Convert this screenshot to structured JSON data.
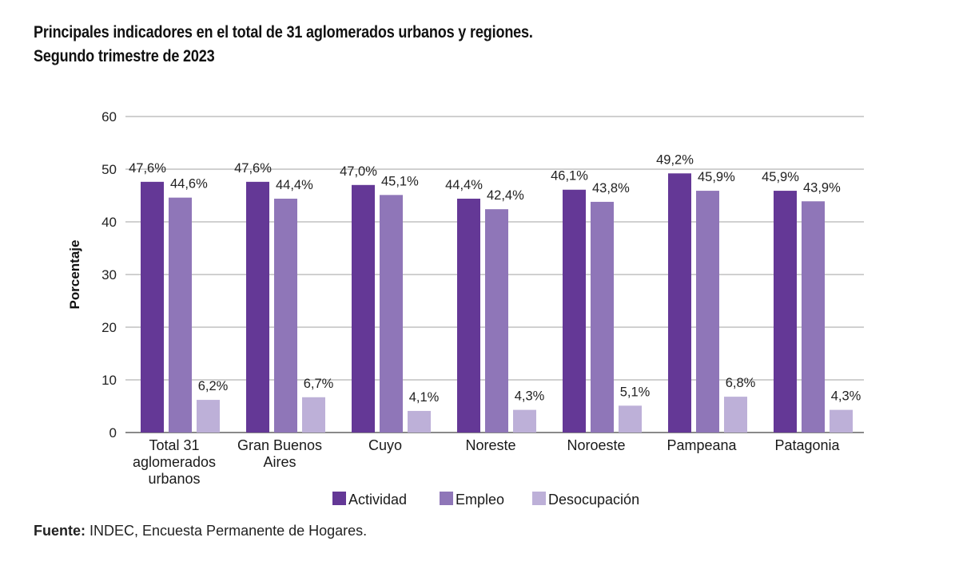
{
  "title_line1": "Principales indicadores en el total de 31 aglomerados urbanos y regiones.",
  "title_line2": "Segundo trimestre de 2023",
  "source_label": "Fuente:",
  "source_text": " INDEC, Encuesta Permanente de Hogares.",
  "chart_data": {
    "type": "bar",
    "title": "Principales indicadores en el total de 31 aglomerados urbanos y regiones. Segundo trimestre de 2023",
    "xlabel": "",
    "ylabel": "Porcentaje",
    "ylim": [
      0,
      60
    ],
    "yticks": [
      0,
      10,
      20,
      30,
      40,
      50,
      60
    ],
    "grid": true,
    "legend_position": "bottom",
    "categories": [
      [
        "Total 31",
        "aglomerados",
        "urbanos"
      ],
      [
        "Gran Buenos",
        "Aires"
      ],
      [
        "Cuyo"
      ],
      [
        "Noreste"
      ],
      [
        "Noroeste"
      ],
      [
        "Pampeana"
      ],
      [
        "Patagonia"
      ]
    ],
    "series": [
      {
        "name": "Actividad",
        "color": "#643896",
        "values": [
          47.6,
          47.6,
          47.0,
          44.4,
          46.1,
          49.2,
          45.9
        ],
        "labels": [
          "47,6%",
          "47,6%",
          "47,0%",
          "44,4%",
          "46,1%",
          "49,2%",
          "45,9%"
        ]
      },
      {
        "name": "Empleo",
        "color": "#8f76b8",
        "values": [
          44.6,
          44.4,
          45.1,
          42.4,
          43.8,
          45.9,
          43.9
        ],
        "labels": [
          "44,6%",
          "44,4%",
          "45,1%",
          "42,4%",
          "43,8%",
          "45,9%",
          "43,9%"
        ]
      },
      {
        "name": "Desocupación",
        "color": "#bdb0d8",
        "values": [
          6.2,
          6.7,
          4.1,
          4.3,
          5.1,
          6.8,
          4.3
        ],
        "labels": [
          "6,2%",
          "6,7%",
          "4,1%",
          "4,3%",
          "5,1%",
          "6,8%",
          "4,3%"
        ]
      }
    ]
  }
}
